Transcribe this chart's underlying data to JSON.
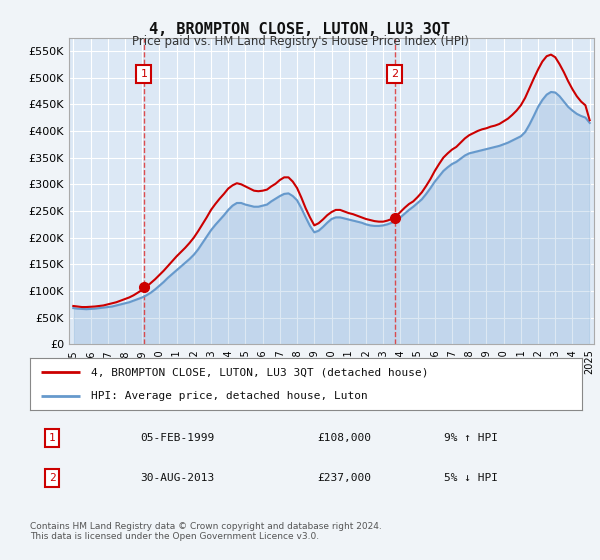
{
  "title": "4, BROMPTON CLOSE, LUTON, LU3 3QT",
  "subtitle": "Price paid vs. HM Land Registry's House Price Index (HPI)",
  "background_color": "#f0f4f8",
  "plot_bg_color": "#dce8f5",
  "line1_label": "4, BROMPTON CLOSE, LUTON, LU3 3QT (detached house)",
  "line2_label": "HPI: Average price, detached house, Luton",
  "sale1_date": "05-FEB-1999",
  "sale1_price": "£108,000",
  "sale1_hpi": "9% ↑ HPI",
  "sale1_year": 1999.1,
  "sale1_value": 108000,
  "sale2_date": "30-AUG-2013",
  "sale2_price": "£237,000",
  "sale2_hpi": "5% ↓ HPI",
  "sale2_year": 2013.67,
  "sale2_value": 237000,
  "footer": "Contains HM Land Registry data © Crown copyright and database right 2024.\nThis data is licensed under the Open Government Licence v3.0.",
  "hpi_years": [
    1995.0,
    1995.25,
    1995.5,
    1995.75,
    1996.0,
    1996.25,
    1996.5,
    1996.75,
    1997.0,
    1997.25,
    1997.5,
    1997.75,
    1998.0,
    1998.25,
    1998.5,
    1998.75,
    1999.0,
    1999.25,
    1999.5,
    1999.75,
    2000.0,
    2000.25,
    2000.5,
    2000.75,
    2001.0,
    2001.25,
    2001.5,
    2001.75,
    2002.0,
    2002.25,
    2002.5,
    2002.75,
    2003.0,
    2003.25,
    2003.5,
    2003.75,
    2004.0,
    2004.25,
    2004.5,
    2004.75,
    2005.0,
    2005.25,
    2005.5,
    2005.75,
    2006.0,
    2006.25,
    2006.5,
    2006.75,
    2007.0,
    2007.25,
    2007.5,
    2007.75,
    2008.0,
    2008.25,
    2008.5,
    2008.75,
    2009.0,
    2009.25,
    2009.5,
    2009.75,
    2010.0,
    2010.25,
    2010.5,
    2010.75,
    2011.0,
    2011.25,
    2011.5,
    2011.75,
    2012.0,
    2012.25,
    2012.5,
    2012.75,
    2013.0,
    2013.25,
    2013.5,
    2013.75,
    2014.0,
    2014.25,
    2014.5,
    2014.75,
    2015.0,
    2015.25,
    2015.5,
    2015.75,
    2016.0,
    2016.25,
    2016.5,
    2016.75,
    2017.0,
    2017.25,
    2017.5,
    2017.75,
    2018.0,
    2018.25,
    2018.5,
    2018.75,
    2019.0,
    2019.25,
    2019.5,
    2019.75,
    2020.0,
    2020.25,
    2020.5,
    2020.75,
    2021.0,
    2021.25,
    2021.5,
    2021.75,
    2022.0,
    2022.25,
    2022.5,
    2022.75,
    2023.0,
    2023.25,
    2023.5,
    2023.75,
    2024.0,
    2024.25,
    2024.5,
    2024.75,
    2025.0
  ],
  "hpi_values": [
    68000,
    67000,
    66500,
    66000,
    66500,
    67000,
    68000,
    69000,
    70000,
    71000,
    73000,
    75000,
    77000,
    79000,
    82000,
    85000,
    88000,
    92000,
    97000,
    103000,
    110000,
    117000,
    125000,
    132000,
    139000,
    146000,
    153000,
    160000,
    168000,
    178000,
    190000,
    202000,
    214000,
    224000,
    233000,
    242000,
    252000,
    260000,
    265000,
    265000,
    262000,
    260000,
    258000,
    258000,
    260000,
    262000,
    268000,
    273000,
    278000,
    282000,
    283000,
    278000,
    270000,
    255000,
    238000,
    222000,
    210000,
    213000,
    220000,
    228000,
    235000,
    238000,
    238000,
    236000,
    234000,
    232000,
    230000,
    228000,
    225000,
    223000,
    222000,
    222000,
    223000,
    225000,
    228000,
    232000,
    238000,
    245000,
    252000,
    258000,
    265000,
    272000,
    282000,
    293000,
    305000,
    315000,
    325000,
    332000,
    338000,
    342000,
    348000,
    354000,
    358000,
    360000,
    362000,
    364000,
    366000,
    368000,
    370000,
    372000,
    375000,
    378000,
    382000,
    386000,
    390000,
    398000,
    412000,
    428000,
    445000,
    458000,
    468000,
    473000,
    472000,
    465000,
    455000,
    445000,
    438000,
    432000,
    428000,
    425000,
    415000
  ],
  "price_years": [
    1995.0,
    1995.25,
    1995.5,
    1995.75,
    1996.0,
    1996.25,
    1996.5,
    1996.75,
    1997.0,
    1997.25,
    1997.5,
    1997.75,
    1998.0,
    1998.25,
    1998.5,
    1998.75,
    1999.0,
    1999.25,
    1999.5,
    1999.75,
    2000.0,
    2000.25,
    2000.5,
    2000.75,
    2001.0,
    2001.25,
    2001.5,
    2001.75,
    2002.0,
    2002.25,
    2002.5,
    2002.75,
    2003.0,
    2003.25,
    2003.5,
    2003.75,
    2004.0,
    2004.25,
    2004.5,
    2004.75,
    2005.0,
    2005.25,
    2005.5,
    2005.75,
    2006.0,
    2006.25,
    2006.5,
    2006.75,
    2007.0,
    2007.25,
    2007.5,
    2007.75,
    2008.0,
    2008.25,
    2008.5,
    2008.75,
    2009.0,
    2009.25,
    2009.5,
    2009.75,
    2010.0,
    2010.25,
    2010.5,
    2010.75,
    2011.0,
    2011.25,
    2011.5,
    2011.75,
    2012.0,
    2012.25,
    2012.5,
    2012.75,
    2013.0,
    2013.25,
    2013.5,
    2013.75,
    2014.0,
    2014.25,
    2014.5,
    2014.75,
    2015.0,
    2015.25,
    2015.5,
    2015.75,
    2016.0,
    2016.25,
    2016.5,
    2016.75,
    2017.0,
    2017.25,
    2017.5,
    2017.75,
    2018.0,
    2018.25,
    2018.5,
    2018.75,
    2019.0,
    2019.25,
    2019.5,
    2019.75,
    2020.0,
    2020.25,
    2020.5,
    2020.75,
    2021.0,
    2021.25,
    2021.5,
    2021.75,
    2022.0,
    2022.25,
    2022.5,
    2022.75,
    2023.0,
    2023.25,
    2023.5,
    2023.75,
    2024.0,
    2024.25,
    2024.5,
    2024.75,
    2025.0
  ],
  "price_values": [
    72000,
    71000,
    70000,
    70000,
    70500,
    71000,
    72000,
    73000,
    75000,
    77000,
    79000,
    82000,
    85000,
    88000,
    92000,
    97000,
    102000,
    108000,
    115000,
    122000,
    130000,
    138000,
    147000,
    156000,
    165000,
    173000,
    181000,
    190000,
    200000,
    212000,
    225000,
    238000,
    252000,
    263000,
    273000,
    282000,
    292000,
    298000,
    302000,
    300000,
    296000,
    292000,
    288000,
    287000,
    288000,
    290000,
    296000,
    301000,
    308000,
    313000,
    313000,
    305000,
    293000,
    275000,
    255000,
    238000,
    223000,
    227000,
    234000,
    242000,
    248000,
    252000,
    252000,
    249000,
    246000,
    244000,
    241000,
    238000,
    235000,
    233000,
    231000,
    230000,
    230000,
    232000,
    235000,
    240000,
    248000,
    256000,
    263000,
    268000,
    276000,
    285000,
    297000,
    310000,
    325000,
    338000,
    350000,
    358000,
    365000,
    370000,
    378000,
    386000,
    392000,
    396000,
    400000,
    403000,
    405000,
    408000,
    410000,
    413000,
    418000,
    423000,
    430000,
    438000,
    448000,
    462000,
    480000,
    498000,
    515000,
    530000,
    540000,
    543000,
    538000,
    525000,
    510000,
    493000,
    478000,
    465000,
    455000,
    448000,
    420000
  ],
  "ylim": [
    0,
    575000
  ],
  "xlim": [
    1994.75,
    2025.25
  ],
  "yticks": [
    0,
    50000,
    100000,
    150000,
    200000,
    250000,
    300000,
    350000,
    400000,
    450000,
    500000,
    550000
  ],
  "xtick_years": [
    1995,
    1996,
    1997,
    1998,
    1999,
    2000,
    2001,
    2002,
    2003,
    2004,
    2005,
    2006,
    2007,
    2008,
    2009,
    2010,
    2011,
    2012,
    2013,
    2014,
    2015,
    2016,
    2017,
    2018,
    2019,
    2020,
    2021,
    2022,
    2023,
    2024,
    2025
  ],
  "red_color": "#cc0000",
  "blue_color": "#6699cc",
  "vline_color": "#dd3333",
  "marker_fill": "#cc0000",
  "table_box_color": "#cc0000"
}
